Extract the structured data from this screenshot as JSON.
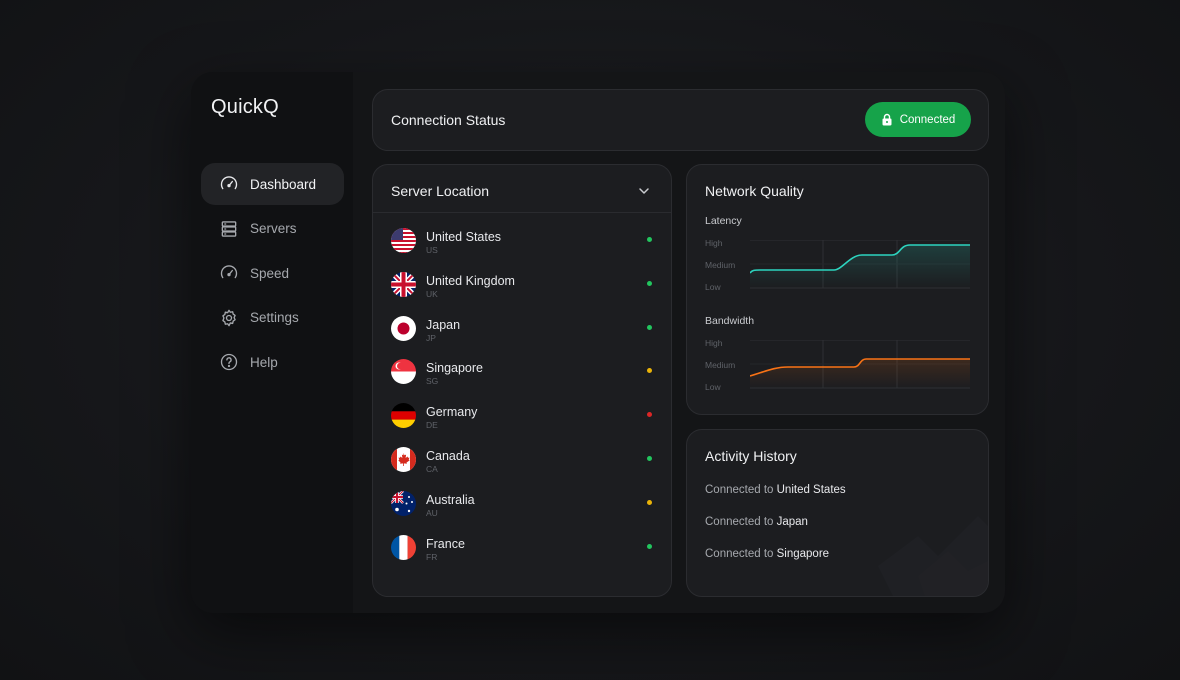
{
  "app": {
    "logo": "QuickQ"
  },
  "sidebar": {
    "items": [
      {
        "label": "Dashboard",
        "icon": "gauge-icon",
        "active": true
      },
      {
        "label": "Servers",
        "icon": "server-icon",
        "active": false
      },
      {
        "label": "Speed",
        "icon": "speedometer-icon",
        "active": false
      },
      {
        "label": "Settings",
        "icon": "gear-icon",
        "active": false
      },
      {
        "label": "Help",
        "icon": "help-icon",
        "active": false
      }
    ]
  },
  "status": {
    "title": "Connection Status",
    "button_label": "Connected",
    "button_icon": "lock-icon",
    "accent": "#16a34a"
  },
  "servers": {
    "title": "Server Location",
    "items": [
      {
        "name": "United States",
        "code": "US",
        "status_color": "#22c55e"
      },
      {
        "name": "United Kingdom",
        "code": "UK",
        "status_color": "#22c55e"
      },
      {
        "name": "Japan",
        "code": "JP",
        "status_color": "#22c55e"
      },
      {
        "name": "Singapore",
        "code": "SG",
        "status_color": "#eab308"
      },
      {
        "name": "Germany",
        "code": "DE",
        "status_color": "#dc2626"
      },
      {
        "name": "Canada",
        "code": "CA",
        "status_color": "#22c55e"
      },
      {
        "name": "Australia",
        "code": "AU",
        "status_color": "#eab308"
      },
      {
        "name": "France",
        "code": "FR",
        "status_color": "#22c55e"
      }
    ]
  },
  "network": {
    "title": "Network Quality",
    "latency": {
      "label": "Latency",
      "levels": [
        "High",
        "Medium",
        "Low"
      ],
      "color": "#2dd4bf"
    },
    "bandwidth": {
      "label": "Bandwidth",
      "levels": [
        "High",
        "Medium",
        "Low"
      ],
      "color": "#f97316"
    }
  },
  "activity": {
    "title": "Activity History",
    "items": [
      {
        "prefix": "Connected to",
        "country": "United States"
      },
      {
        "prefix": "Connected to",
        "country": "Japan"
      },
      {
        "prefix": "Connected to",
        "country": "Singapore"
      }
    ]
  }
}
